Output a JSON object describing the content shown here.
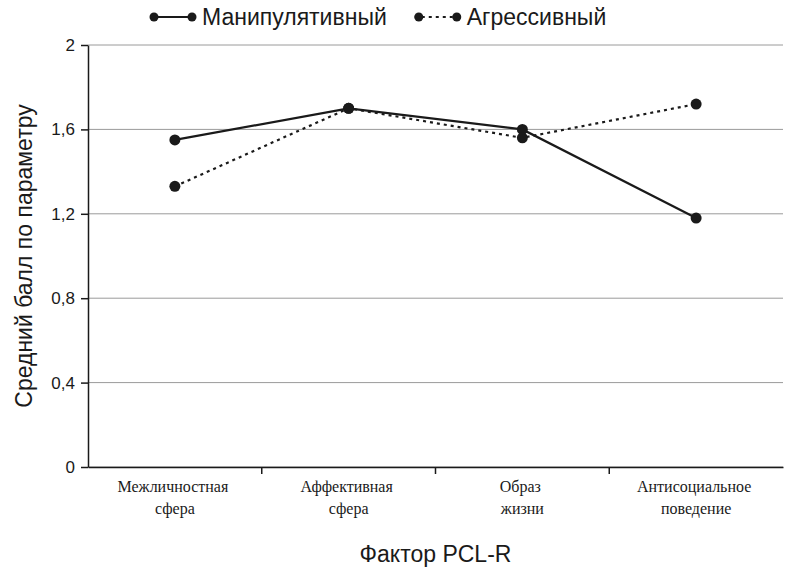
{
  "chart_data": {
    "type": "line",
    "x_label": "Фактор PCL-R",
    "y_label": "Средний балл по параметру",
    "categories": [
      "Межличностная сфера",
      "Аффективная сфера",
      "Образ жизни",
      "Антисоциальное поведение"
    ],
    "series": [
      {
        "name": "Манипулятивный",
        "color": "#1a1a1a",
        "line_style": "solid",
        "marker": "circle",
        "values": [
          1.55,
          1.7,
          1.6,
          1.18
        ]
      },
      {
        "name": "Агрессивный",
        "color": "#1a1a1a",
        "line_style": "dotted",
        "marker": "circle",
        "values": [
          1.33,
          1.7,
          1.56,
          1.72
        ]
      }
    ],
    "ylim": [
      0,
      2
    ],
    "yticks": [
      0,
      {
        "value": 0.4,
        "label": "0,4"
      },
      {
        "value": 0.8,
        "label": "0,8"
      },
      {
        "value": 1.2,
        "label": "1,2"
      },
      {
        "value": 1.6,
        "label": "1,6"
      },
      2
    ],
    "grid": true,
    "legend": "top"
  }
}
